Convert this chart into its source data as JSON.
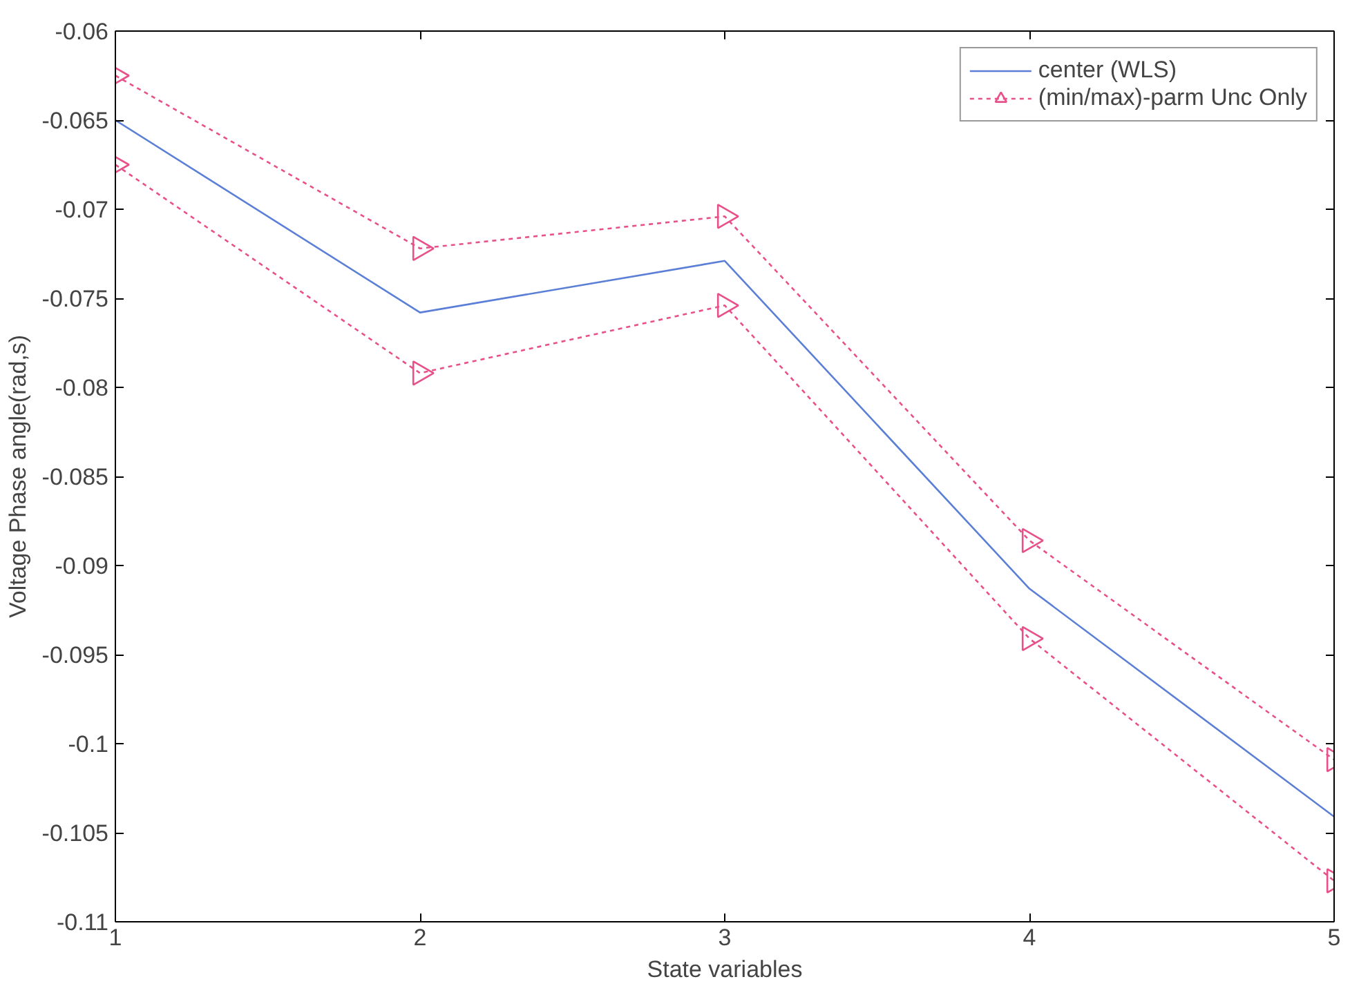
{
  "chart_data": {
    "type": "line",
    "xlabel": "State variables",
    "ylabel": "Voltage Phase angle(rad,s)",
    "x": [
      1,
      2,
      3,
      4,
      5
    ],
    "series": [
      {
        "name": "center (WLS)",
        "color": "#5b7fd6",
        "values": [
          -0.065,
          -0.0758,
          -0.0729,
          -0.0913,
          -0.1041
        ],
        "marker": "none",
        "line_style": "solid"
      },
      {
        "name": "(min/max)-parm Unc Only",
        "color": "#e8508a",
        "values": [
          -0.0625,
          -0.0722,
          -0.0704,
          -0.0886,
          -0.1009
        ],
        "marker": "triangle",
        "line_style": "dotted"
      },
      {
        "color": "#e8508a",
        "values": [
          -0.0675,
          -0.0792,
          -0.0754,
          -0.0941,
          -0.1077
        ],
        "marker": "triangle",
        "line_style": "dotted"
      }
    ],
    "xlim": [
      1,
      5
    ],
    "ylim": [
      -0.11,
      -0.06
    ],
    "xticks": [
      1,
      2,
      3,
      4,
      5
    ],
    "yticks": [
      -0.11,
      -0.105,
      -0.1,
      -0.095,
      -0.09,
      -0.085,
      -0.08,
      -0.075,
      -0.07,
      -0.065,
      -0.06
    ],
    "grid": false,
    "legend": "top right"
  }
}
